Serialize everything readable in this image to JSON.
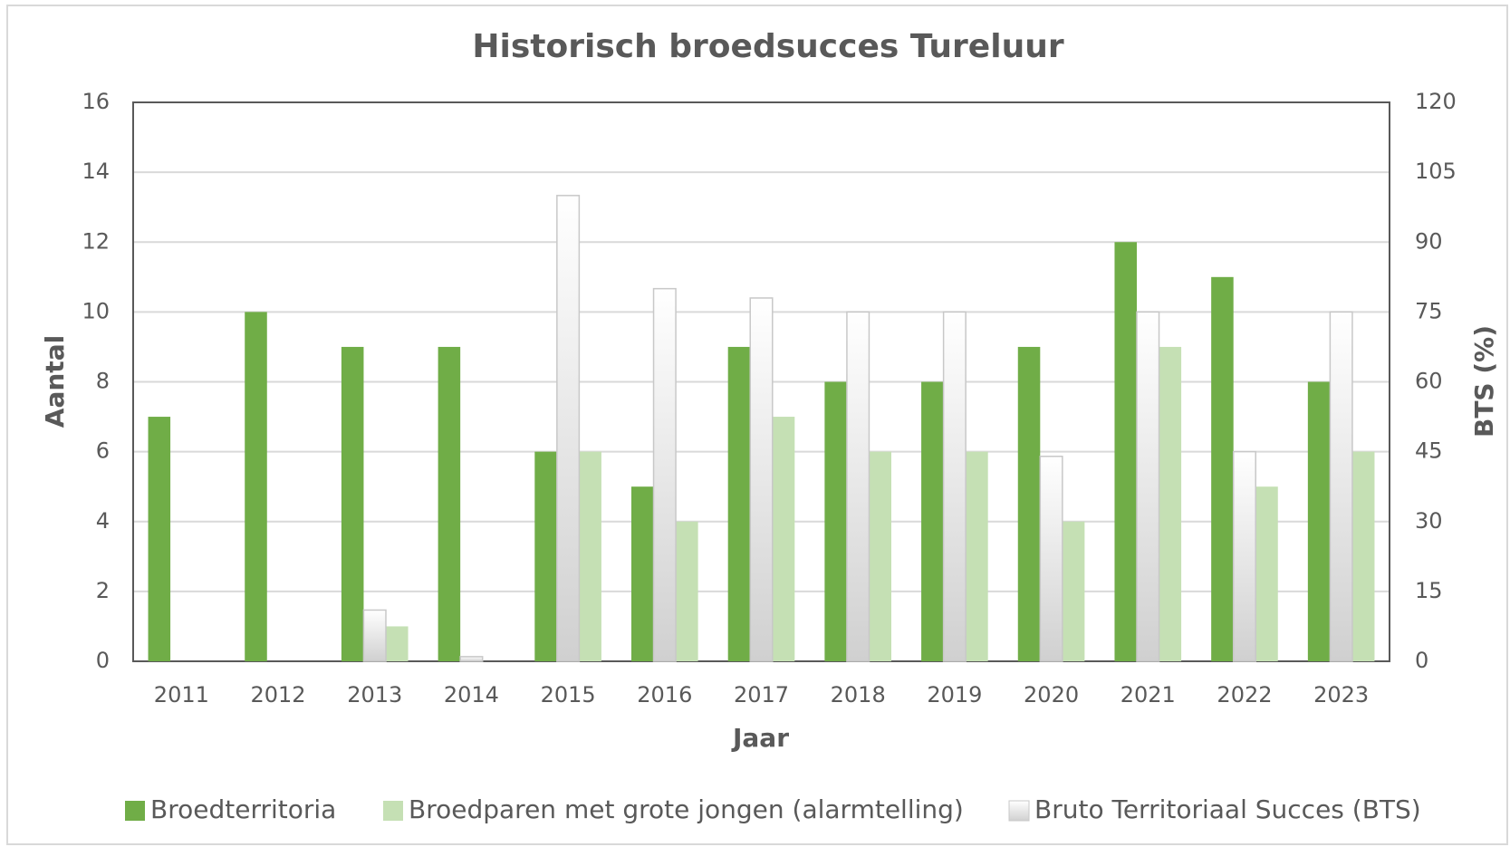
{
  "chart_data": {
    "type": "bar",
    "title": "Historisch broedsucces Tureluur",
    "x_label": "Jaar",
    "y_label": "Aantal",
    "y2_label": "BTS (%)",
    "categories": [
      "2011",
      "2012",
      "2013",
      "2014",
      "2015",
      "2016",
      "2017",
      "2018",
      "2019",
      "2020",
      "2021",
      "2022",
      "2023"
    ],
    "series": [
      {
        "name": "Broedterritoria",
        "color": "#70ad47",
        "values": [
          7,
          10,
          9,
          9,
          6,
          5,
          9,
          8,
          8,
          9,
          12,
          11,
          8
        ]
      },
      {
        "name": "Broedparen met grote jongen (alarmtelling)",
        "color": "#c5e0b4",
        "values": [
          0,
          0,
          1,
          0,
          6,
          4,
          7,
          6,
          6,
          4,
          9,
          5,
          6
        ]
      },
      {
        "name": "Bruto Territoriaal Succes (BTS)",
        "color": "#e0e0e0",
        "axis": "y2",
        "values": [
          0,
          0,
          11,
          1,
          100,
          80,
          78,
          75,
          75,
          44,
          75,
          45,
          75
        ]
      }
    ],
    "ylim": [
      0,
      16
    ],
    "yticks": [
      0,
      2,
      4,
      6,
      8,
      10,
      12,
      14,
      16
    ],
    "y2lim": [
      0,
      120
    ],
    "y2ticks": [
      0,
      15,
      30,
      45,
      60,
      75,
      90,
      105,
      120
    ],
    "grid": true,
    "legend": "bottom"
  }
}
